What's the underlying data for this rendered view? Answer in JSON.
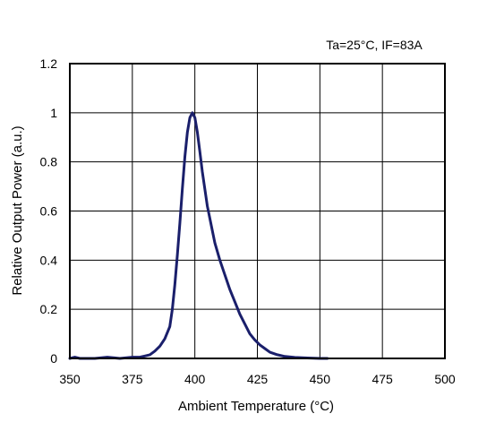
{
  "chart_data": {
    "type": "line",
    "title": "",
    "annotation": "Ta=25°C, IF=83A",
    "xlabel": "Ambient Temperature (°C)",
    "ylabel": "Relative Output Power (a.u.)",
    "xlim": [
      350,
      500
    ],
    "ylim": [
      0,
      1.2
    ],
    "x_ticks": [
      "350",
      "375",
      "400",
      "425",
      "450",
      "475",
      "500"
    ],
    "y_ticks": [
      "0",
      "0.2",
      "0.4",
      "0.6",
      "0.8",
      "1",
      "1.2"
    ],
    "grid": true,
    "line_color": "#1a1f6b",
    "series": [
      {
        "x": [
          350,
          352,
          354,
          360,
          365,
          370,
          375,
          378,
          380,
          382,
          384,
          386,
          388,
          390,
          391,
          392,
          393,
          394,
          395,
          396,
          397,
          398,
          399,
          400,
          401,
          402,
          403,
          404,
          405,
          406,
          407,
          408,
          410,
          412,
          414,
          416,
          418,
          420,
          422,
          424,
          426,
          428,
          430,
          433,
          436,
          440,
          445,
          450,
          453
        ],
        "y": [
          0.0,
          0.005,
          0.0,
          0.0,
          0.005,
          0.0,
          0.005,
          0.005,
          0.01,
          0.015,
          0.03,
          0.05,
          0.08,
          0.13,
          0.2,
          0.3,
          0.42,
          0.55,
          0.69,
          0.82,
          0.92,
          0.98,
          1.0,
          0.98,
          0.92,
          0.84,
          0.76,
          0.69,
          0.62,
          0.57,
          0.52,
          0.47,
          0.4,
          0.34,
          0.28,
          0.23,
          0.18,
          0.14,
          0.1,
          0.075,
          0.055,
          0.04,
          0.025,
          0.015,
          0.008,
          0.004,
          0.002,
          0.0,
          0.0
        ]
      }
    ]
  }
}
